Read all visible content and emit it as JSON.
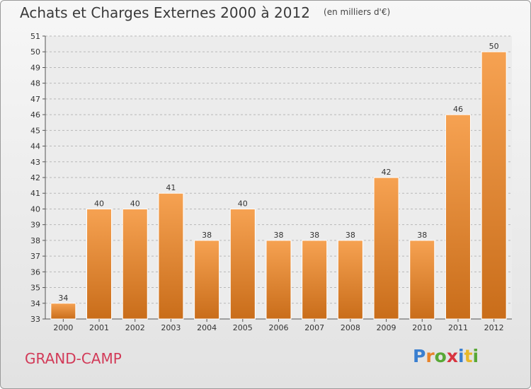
{
  "header": {
    "title": "Achats et Charges Externes 2000 à 2012",
    "subtitle": "(en milliers d'€)"
  },
  "footer": {
    "commune": "GRAND-CAMP",
    "logo": "Proxiti"
  },
  "colors": {
    "bar_top": "#f6a252",
    "bar_bottom": "#c96d1a",
    "commune": "#d23a58"
  },
  "chart_data": {
    "type": "bar",
    "title": "Achats et Charges Externes 2000 à 2012",
    "subtitle": "(en milliers d'€)",
    "xlabel": "",
    "ylabel": "",
    "categories": [
      "2000",
      "2001",
      "2002",
      "2003",
      "2004",
      "2005",
      "2006",
      "2007",
      "2008",
      "2009",
      "2010",
      "2011",
      "2012"
    ],
    "values": [
      34,
      40,
      40,
      41,
      38,
      40,
      38,
      38,
      38,
      42,
      38,
      46,
      50
    ],
    "ylim": [
      33,
      51
    ],
    "yticks": [
      33,
      34,
      35,
      36,
      37,
      38,
      39,
      40,
      41,
      42,
      43,
      44,
      45,
      46,
      47,
      48,
      49,
      50,
      51
    ],
    "grid": true,
    "legend": "none"
  }
}
